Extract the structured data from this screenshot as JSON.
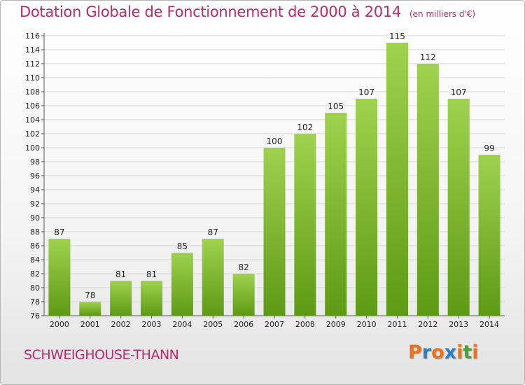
{
  "header": {
    "title": "Dotation Globale de Fonctionnement de 2000 à 2014",
    "unit": "(en milliers d'€)"
  },
  "footer": {
    "commune": "SCHWEIGHOUSE-THANN",
    "brand": "Proxiti",
    "brand_colors": [
      "#e8731c",
      "#2d7fc4",
      "#e8731c",
      "#2d7fc4",
      "#e8731c",
      "#4aa03a",
      "#e8731c"
    ]
  },
  "colors": {
    "title": "#c0296b",
    "bar_top": "#9fd24e",
    "bar_bottom": "#5e9a14",
    "grid": "#d6d6d6"
  },
  "chart_data": {
    "type": "bar",
    "title": "Dotation Globale de Fonctionnement de 2000 à 2014",
    "categories": [
      "2000",
      "2001",
      "2002",
      "2003",
      "2004",
      "2005",
      "2006",
      "2007",
      "2008",
      "2009",
      "2010",
      "2011",
      "2012",
      "2013",
      "2014"
    ],
    "values": [
      87,
      78,
      81,
      81,
      85,
      87,
      82,
      100,
      102,
      105,
      107,
      115,
      112,
      107,
      99
    ],
    "ylim": [
      76,
      116
    ],
    "ytick_step": 2,
    "grid": true,
    "legend": "none"
  }
}
